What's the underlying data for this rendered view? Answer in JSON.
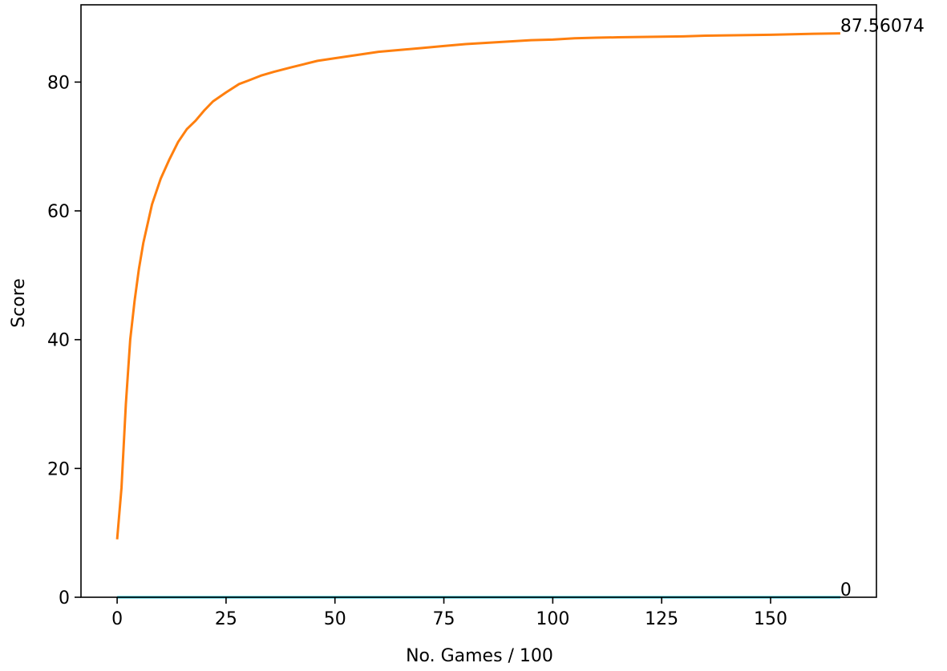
{
  "chart_data": {
    "type": "line",
    "title": "",
    "xlabel": "No. Games / 100",
    "ylabel": "Score",
    "xlim": [
      -8.3,
      174.3
    ],
    "ylim": [
      0,
      92
    ],
    "xticks": [
      0,
      25,
      50,
      75,
      100,
      125,
      150
    ],
    "yticks": [
      0,
      20,
      40,
      60,
      80
    ],
    "grid": false,
    "legend": "none",
    "annotations": [
      {
        "text": "87.56074",
        "x": 166,
        "y": 87.56074
      },
      {
        "text": "0",
        "x": 166,
        "y": 0
      }
    ],
    "series": [
      {
        "color": "#ff7f0e",
        "x": [
          0,
          1,
          2,
          3,
          4,
          5,
          6,
          7,
          8,
          9,
          10,
          12,
          14,
          16,
          18,
          20,
          22,
          25,
          28,
          30,
          33,
          36,
          40,
          43,
          46,
          50,
          55,
          60,
          65,
          70,
          75,
          80,
          85,
          90,
          95,
          100,
          105,
          110,
          115,
          120,
          125,
          130,
          135,
          140,
          145,
          150,
          155,
          160,
          166
        ],
        "y": [
          9,
          17,
          30,
          40,
          46,
          51,
          55,
          58,
          61,
          63,
          65,
          68,
          70.7,
          72.7,
          74,
          75.6,
          77,
          78.4,
          79.7,
          80.2,
          81,
          81.6,
          82.3,
          82.8,
          83.3,
          83.7,
          84.2,
          84.7,
          85,
          85.3,
          85.6,
          85.9,
          86.1,
          86.3,
          86.5,
          86.6,
          86.8,
          86.9,
          86.95,
          87.0,
          87.05,
          87.1,
          87.2,
          87.25,
          87.3,
          87.35,
          87.42,
          87.5,
          87.56074
        ]
      },
      {
        "color": "#17becf",
        "x": [
          0,
          166
        ],
        "y": [
          0,
          0
        ]
      }
    ]
  }
}
